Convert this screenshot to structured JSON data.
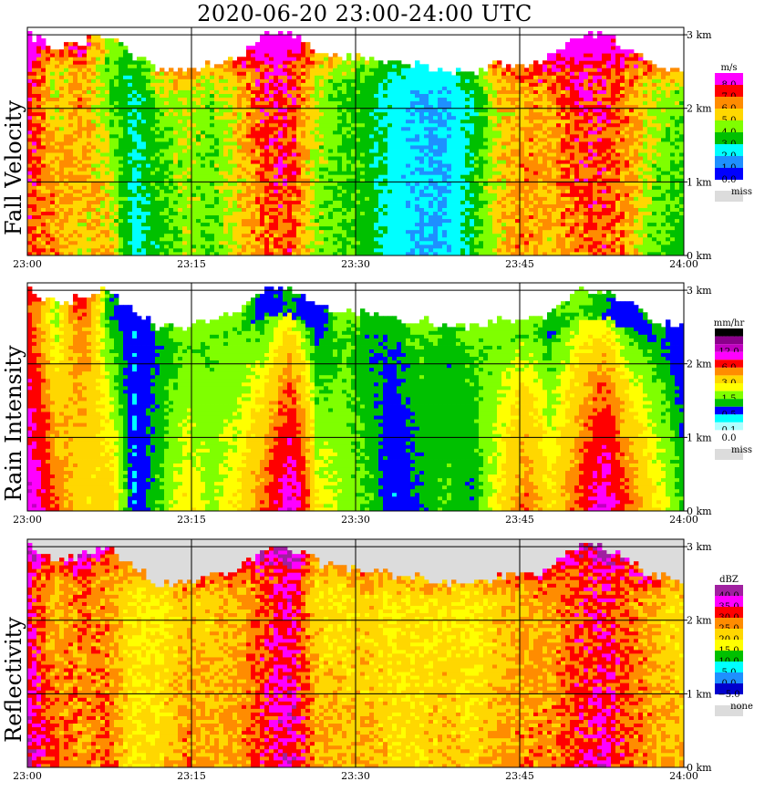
{
  "title": "2020-06-20   23:00-24:00 UTC",
  "chart_data": [
    {
      "type": "heatmap",
      "title": "Fall Velocity",
      "unit": "m/s",
      "x_ticks": [
        "23:00",
        "23:15",
        "23:30",
        "23:45",
        "24:00"
      ],
      "y_ticks": [
        "0 km",
        "1 km",
        "2 km",
        "3 km"
      ],
      "ylim": [
        0,
        3.1
      ],
      "colorbar": [
        {
          "label": "8.0",
          "color": "#ff00ff"
        },
        {
          "label": "7.0",
          "color": "#ff0000"
        },
        {
          "label": "6.0",
          "color": "#ff8c00"
        },
        {
          "label": "5.0",
          "color": "#ffd700"
        },
        {
          "label": "4.0",
          "color": "#7fff00"
        },
        {
          "label": "3.0",
          "color": "#00c000"
        },
        {
          "label": "2.0",
          "color": "#00ffff"
        },
        {
          "label": "1.0",
          "color": "#1e90ff"
        },
        {
          "label": "0.0",
          "color": "#0000ff"
        }
      ],
      "missing_label": "miss",
      "missing_color": "#dcdcdc",
      "echo_top_km": [
        3.0,
        2.8,
        2.9,
        3.0,
        2.7,
        2.5,
        2.5,
        2.6,
        2.7,
        3.0,
        3.0,
        2.8,
        2.7,
        2.7,
        2.6,
        2.6,
        2.5,
        2.5,
        2.6,
        2.6,
        2.7,
        3.0,
        3.0,
        2.8,
        2.6,
        2.5
      ],
      "profiles": [
        [
          1.0,
          7.0,
          8.0
        ],
        [
          0.8,
          6.5,
          5.0
        ],
        [
          0.6,
          5.5,
          6.5
        ],
        [
          0.5,
          6.0,
          4.0
        ],
        [
          0.4,
          2.5,
          3.0
        ],
        [
          0.3,
          3.5,
          4.5
        ],
        [
          0.7,
          4.5,
          5.0
        ],
        [
          0.5,
          4.0,
          4.5
        ],
        [
          0.6,
          5.5,
          5.5
        ],
        [
          0.9,
          6.5,
          8.0
        ],
        [
          0.9,
          7.0,
          8.0
        ],
        [
          0.6,
          4.5,
          5.0
        ],
        [
          0.5,
          4.0,
          4.0
        ],
        [
          0.5,
          3.5,
          3.5
        ],
        [
          0.4,
          2.5,
          2.5
        ],
        [
          0.4,
          2.0,
          2.0
        ],
        [
          0.4,
          2.0,
          2.0
        ],
        [
          0.5,
          3.5,
          3.0
        ],
        [
          0.6,
          5.5,
          5.5
        ],
        [
          0.7,
          6.5,
          6.0
        ],
        [
          0.8,
          5.5,
          6.5
        ],
        [
          0.9,
          6.5,
          8.0
        ],
        [
          0.9,
          7.0,
          7.5
        ],
        [
          0.8,
          6.0,
          6.5
        ],
        [
          0.5,
          4.0,
          5.0
        ],
        [
          0.5,
          3.5,
          4.5
        ]
      ]
    },
    {
      "type": "heatmap",
      "title": "Rain Intensity",
      "unit": "mm/hr",
      "x_ticks": [
        "23:00",
        "23:15",
        "23:30",
        "23:45",
        "24:00"
      ],
      "y_ticks": [
        "0 km",
        "1 km",
        "2 km",
        "3 km"
      ],
      "ylim": [
        0,
        3.1
      ],
      "colorbar": [
        {
          "label": "48.0",
          "color": "#000000"
        },
        {
          "label": "",
          "color": "#8b008b"
        },
        {
          "label": "12.0",
          "color": "#c000c0"
        },
        {
          "label": "",
          "color": "#ff00ff"
        },
        {
          "label": "6.0",
          "color": "#ff0000"
        },
        {
          "label": "",
          "color": "#ff8c00"
        },
        {
          "label": "3.0",
          "color": "#ffd700"
        },
        {
          "label": "",
          "color": "#ffff00"
        },
        {
          "label": "1.5",
          "color": "#7fff00"
        },
        {
          "label": "",
          "color": "#00c000"
        },
        {
          "label": "0.5",
          "color": "#0000ff"
        },
        {
          "label": "",
          "color": "#00ffff"
        },
        {
          "label": "0.1",
          "color": "#b0ffff"
        },
        {
          "label": "0.0",
          "color": "#ffffff"
        }
      ],
      "missing_label": "miss",
      "missing_color": "#dcdcdc",
      "echo_top_km": [
        3.0,
        2.8,
        2.9,
        3.0,
        2.7,
        2.5,
        2.5,
        2.6,
        2.7,
        3.0,
        3.0,
        2.8,
        2.7,
        2.7,
        2.6,
        2.6,
        2.5,
        2.5,
        2.6,
        2.6,
        2.7,
        3.0,
        3.0,
        2.8,
        2.6,
        2.5
      ],
      "profiles": [
        [
          1.2,
          12.0,
          6.0
        ],
        [
          0.8,
          6.0,
          1.5
        ],
        [
          0.6,
          3.0,
          6.0
        ],
        [
          0.6,
          4.0,
          1.0
        ],
        [
          0.4,
          0.5,
          0.5
        ],
        [
          0.4,
          1.5,
          1.0
        ],
        [
          0.7,
          3.0,
          1.5
        ],
        [
          0.6,
          2.0,
          1.5
        ],
        [
          0.6,
          3.0,
          1.5
        ],
        [
          0.8,
          6.0,
          0.5
        ],
        [
          0.9,
          12.0,
          1.0
        ],
        [
          0.6,
          3.0,
          0.5
        ],
        [
          0.6,
          2.0,
          1.5
        ],
        [
          0.5,
          1.5,
          1.0
        ],
        [
          0.4,
          0.5,
          1.0
        ],
        [
          0.4,
          1.0,
          1.5
        ],
        [
          0.4,
          1.5,
          1.0
        ],
        [
          0.5,
          1.0,
          1.5
        ],
        [
          0.6,
          3.0,
          1.5
        ],
        [
          0.7,
          6.0,
          1.5
        ],
        [
          0.8,
          3.0,
          1.0
        ],
        [
          0.9,
          6.0,
          1.5
        ],
        [
          0.9,
          12.0,
          1.0
        ],
        [
          0.8,
          6.0,
          0.5
        ],
        [
          0.6,
          3.0,
          1.0
        ],
        [
          0.6,
          1.5,
          0.5
        ]
      ]
    },
    {
      "type": "heatmap",
      "title": "Reflectivity",
      "unit": "dBZ",
      "x_ticks": [
        "23:00",
        "23:15",
        "23:30",
        "23:45",
        "24:00"
      ],
      "y_ticks": [
        "0 km",
        "1 km",
        "2 km",
        "3 km"
      ],
      "ylim": [
        0,
        3.1
      ],
      "colorbar": [
        {
          "label": "40.0",
          "color": "#a020a0"
        },
        {
          "label": "35.0",
          "color": "#ff00ff"
        },
        {
          "label": "30.0",
          "color": "#ff0000"
        },
        {
          "label": "25.0",
          "color": "#ff8c00"
        },
        {
          "label": "20.0",
          "color": "#ffd700"
        },
        {
          "label": "15.0",
          "color": "#ffff00"
        },
        {
          "label": "10.0",
          "color": "#00c000"
        },
        {
          "label": "5.0",
          "color": "#00ffff"
        },
        {
          "label": "0.0",
          "color": "#1e90ff"
        },
        {
          "label": "−5.0",
          "color": "#0000cd"
        }
      ],
      "missing_label": "none",
      "missing_color": "#dcdcdc",
      "echo_top_km": [
        3.0,
        2.8,
        2.9,
        3.0,
        2.7,
        2.5,
        2.5,
        2.6,
        2.7,
        3.0,
        3.0,
        2.8,
        2.7,
        2.7,
        2.6,
        2.6,
        2.5,
        2.5,
        2.6,
        2.6,
        2.7,
        3.0,
        3.0,
        2.8,
        2.6,
        2.5
      ],
      "profiles": [
        [
          1.5,
          38.0,
          32.0
        ],
        [
          0.8,
          30.0,
          22.0
        ],
        [
          0.6,
          26.0,
          30.0
        ],
        [
          0.6,
          30.0,
          25.0
        ],
        [
          0.5,
          20.0,
          20.0
        ],
        [
          0.4,
          22.0,
          18.0
        ],
        [
          0.7,
          28.0,
          22.0
        ],
        [
          0.6,
          25.0,
          22.0
        ],
        [
          0.7,
          27.0,
          24.0
        ],
        [
          0.9,
          32.0,
          30.0
        ],
        [
          0.9,
          38.0,
          35.0
        ],
        [
          0.7,
          27.0,
          20.0
        ],
        [
          0.6,
          24.0,
          20.0
        ],
        [
          0.6,
          24.0,
          22.0
        ],
        [
          0.5,
          22.0,
          20.0
        ],
        [
          0.5,
          22.0,
          20.0
        ],
        [
          0.5,
          24.0,
          20.0
        ],
        [
          0.5,
          22.0,
          18.0
        ],
        [
          0.6,
          26.0,
          22.0
        ],
        [
          0.7,
          28.0,
          24.0
        ],
        [
          0.7,
          27.0,
          25.0
        ],
        [
          0.9,
          32.0,
          30.0
        ],
        [
          0.9,
          36.0,
          32.0
        ],
        [
          0.8,
          30.0,
          28.0
        ],
        [
          0.6,
          26.0,
          24.0
        ],
        [
          0.6,
          24.0,
          20.0
        ]
      ]
    }
  ]
}
